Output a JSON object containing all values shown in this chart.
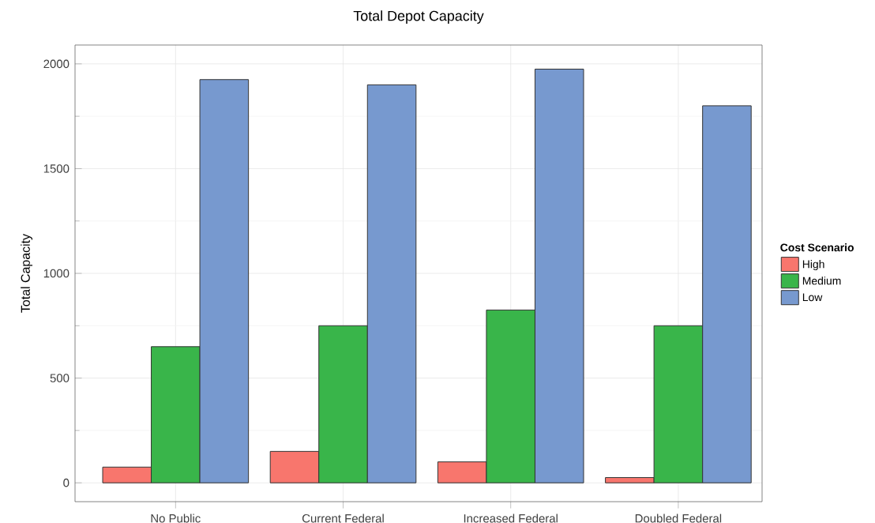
{
  "chart_data": {
    "type": "bar",
    "title": "Total Depot Capacity",
    "ylabel": "Total Capacity",
    "legend_title": "Cost Scenario",
    "categories": [
      "No Public",
      "Current Federal",
      "Increased Federal",
      "Doubled Federal"
    ],
    "series": [
      {
        "name": "High",
        "color": "#f8766d",
        "values": [
          75,
          150,
          100,
          25
        ]
      },
      {
        "name": "Medium",
        "color": "#39b54a",
        "values": [
          650,
          750,
          825,
          750
        ]
      },
      {
        "name": "Low",
        "color": "#7799cf",
        "values": [
          1925,
          1900,
          1975,
          1800
        ]
      }
    ],
    "ylim": [
      -90,
      2090
    ],
    "yticks": [
      0,
      500,
      1000,
      1500,
      2000
    ],
    "grid": true,
    "legend": "right"
  }
}
